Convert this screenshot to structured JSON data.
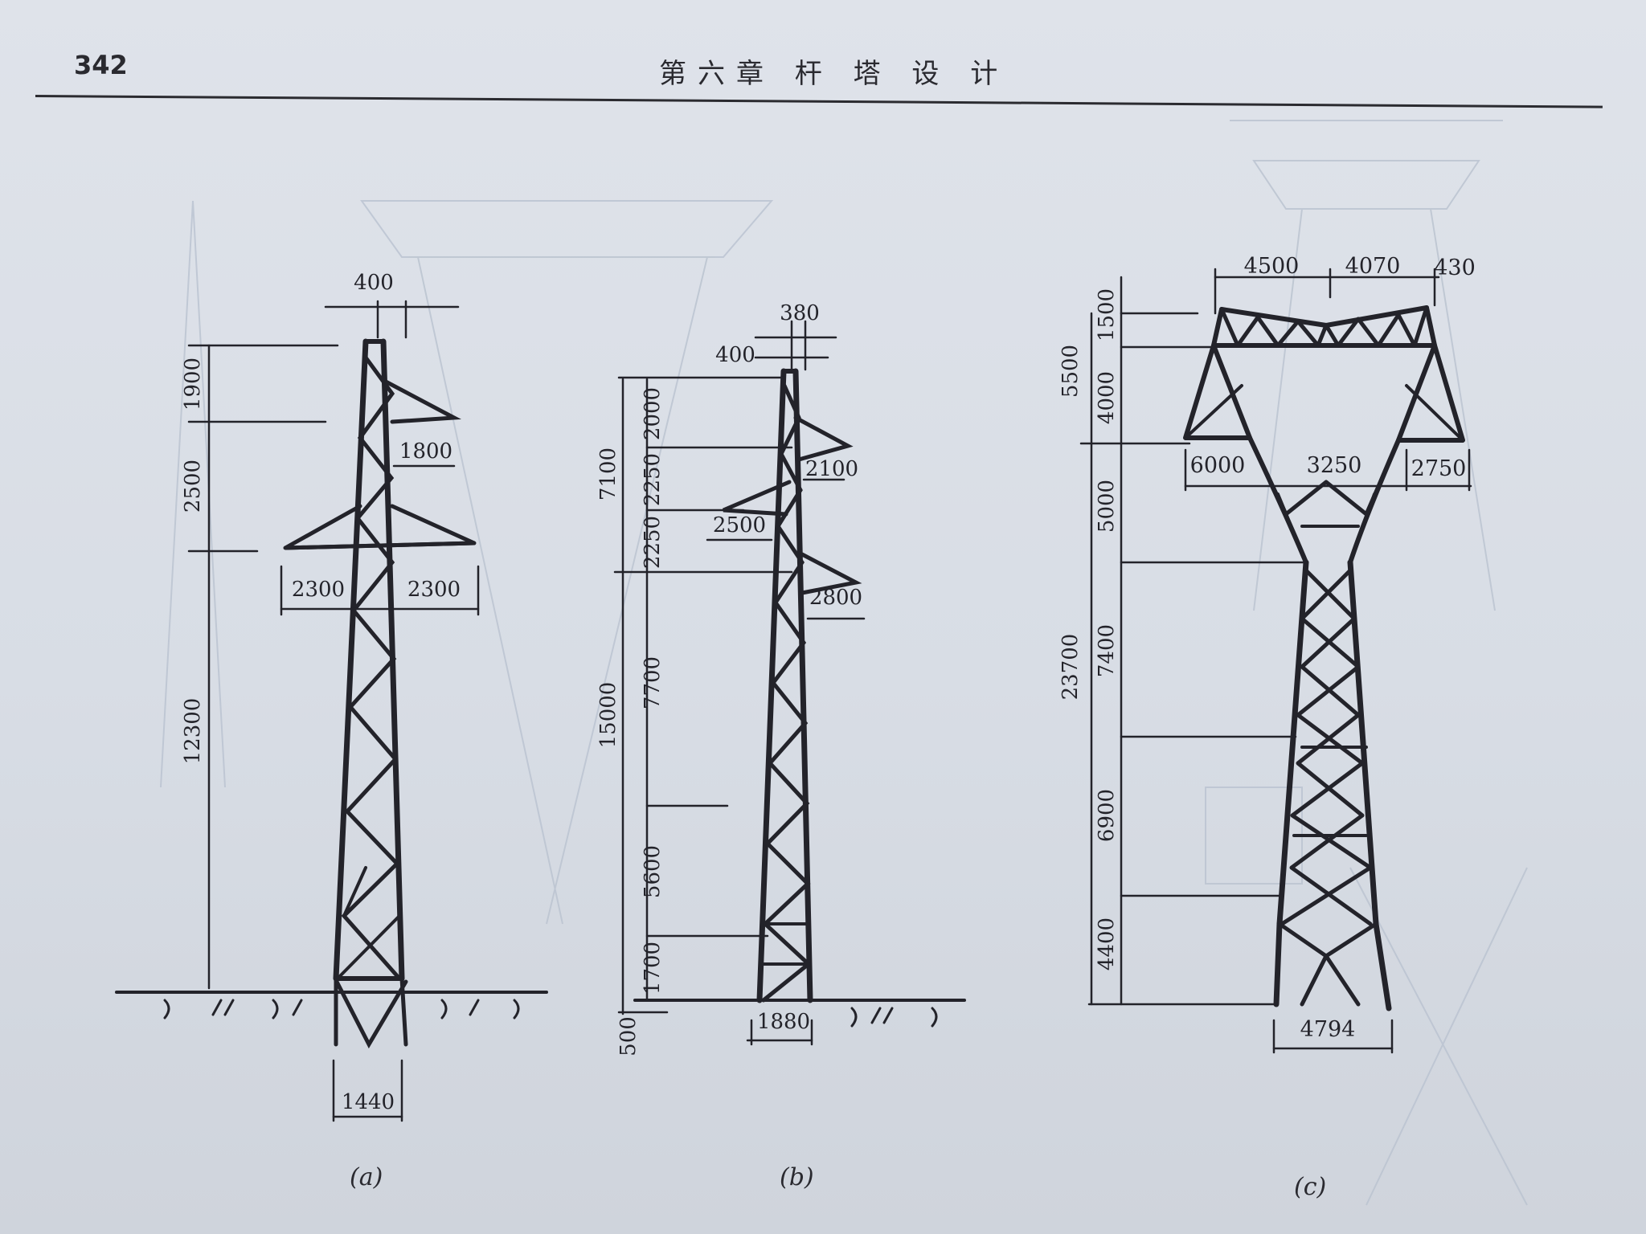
{
  "page": {
    "number": "342",
    "chapter_title": "第六章  杆  塔  设  计"
  },
  "colors": {
    "ink": "#23232a",
    "paper": "#dce1e8"
  },
  "towers": [
    {
      "caption": "(a)",
      "dims": {
        "top_width": "400",
        "h1": "1900",
        "h2": "2500",
        "h3": "12300",
        "upper_arm": "1800",
        "left_arm": "2300",
        "right_arm": "2300",
        "base_width": "1440"
      }
    },
    {
      "caption": "(b)",
      "dims": {
        "top1": "380",
        "top2": "400",
        "h_2000": "2000",
        "h_2250a": "2250",
        "h_2250b": "2250",
        "h_7100": "7100",
        "h_7700": "7700",
        "h_15000": "15000",
        "h_5600": "5600",
        "h_1700": "1700",
        "h_500": "500",
        "arm_2100": "2100",
        "arm_2500": "2500",
        "arm_2800": "2800",
        "base_width": "1880"
      }
    },
    {
      "caption": "(c)",
      "dims": {
        "top_4500": "4500",
        "top_4070": "4070",
        "top_430": "430",
        "h_1500": "1500",
        "h_5500": "5500",
        "h_4000": "4000",
        "mid_6000": "6000",
        "mid_3250": "3250",
        "mid_2750": "2750",
        "h_5000": "5000",
        "h_7400": "7400",
        "h_23700": "23700",
        "h_6900": "6900",
        "h_4400": "4400",
        "base_width": "4794"
      }
    }
  ]
}
